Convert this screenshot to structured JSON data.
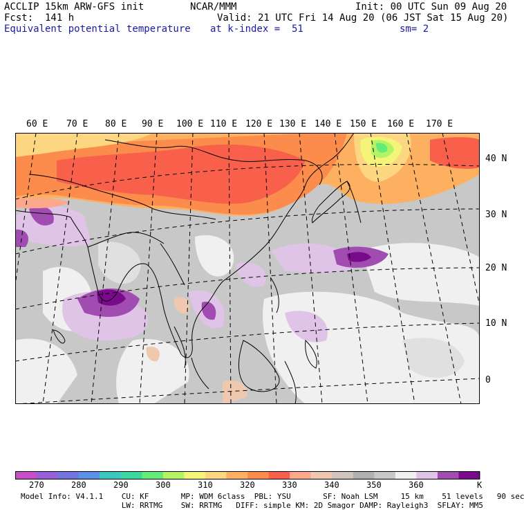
{
  "header": {
    "model_title": "ACCLIP 15km ARW-GFS init",
    "org": "NCAR/MMM",
    "init": "Init: 00 UTC Sun 09 Aug 20",
    "forecast": "Fcst:  141 h",
    "valid": "Valid: 21 UTC Fri 14 Aug 20 (06 JST Sat 15 Aug 20)",
    "field_name": "Equivalent potential temperature",
    "level": "at k-index =  51",
    "smoothing": "sm= 2"
  },
  "map": {
    "lon_labels": [
      "60 E",
      "70 E",
      "80 E",
      "90 E",
      "100 E",
      "110 E",
      "120 E",
      "130 E",
      "140 E",
      "150 E",
      "160 E",
      "170 E"
    ],
    "lat_labels": [
      "40 N",
      "30 N",
      "20 N",
      "10 N",
      "0"
    ]
  },
  "colorbar": {
    "colors": [
      "#c84fc8",
      "#9a5fd8",
      "#7474e0",
      "#5a90e8",
      "#3cc8c0",
      "#3cd8a0",
      "#64ec78",
      "#b4f464",
      "#f4f478",
      "#fcd680",
      "#fcb060",
      "#fc8c4c",
      "#f8604c",
      "#fca88c",
      "#f0c8b0",
      "#d0c4bc",
      "#b0b0b0",
      "#c8c8c8",
      "#f0f0f0",
      "#e0c4e8",
      "#a04cb0",
      "#7a0a8c"
    ],
    "labels": [
      "270",
      "280",
      "290",
      "300",
      "310",
      "320",
      "330",
      "340",
      "350",
      "360"
    ],
    "unit": "K"
  },
  "footer": {
    "line1": "Model Info: V4.1.1    CU: KF       MP: WDM 6class  PBL: YSU       SF: Noah LSM     15 km    51 levels   90 sec",
    "line2": "                      LW: RRTMG    SW: RRTMG   DIFF: simple KM: 2D Smagor DAMP: Rayleigh3  SFLAY: MM5"
  }
}
